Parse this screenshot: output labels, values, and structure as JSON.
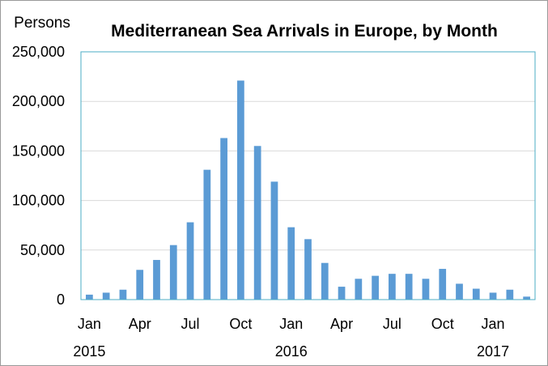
{
  "chart_data": {
    "type": "bar",
    "title": "Mediterranean Sea Arrivals in Europe, by Month",
    "ylabel": "Persons",
    "xlabel": "",
    "ylim": [
      0,
      250000
    ],
    "y_ticks": [
      "0",
      "50,000",
      "100,000",
      "150,000",
      "200,000",
      "250,000"
    ],
    "y_tick_values": [
      0,
      50000,
      100000,
      150000,
      200000,
      250000
    ],
    "grid": true,
    "categories": [
      "Jan 2015",
      "Feb 2015",
      "Mar 2015",
      "Apr 2015",
      "May 2015",
      "Jun 2015",
      "Jul 2015",
      "Aug 2015",
      "Sep 2015",
      "Oct 2015",
      "Nov 2015",
      "Dec 2015",
      "Jan 2016",
      "Feb 2016",
      "Mar 2016",
      "Apr 2016",
      "May 2016",
      "Jun 2016",
      "Jul 2016",
      "Aug 2016",
      "Sep 2016",
      "Oct 2016",
      "Nov 2016",
      "Dec 2016",
      "Jan 2017",
      "Feb 2017",
      "Mar 2017"
    ],
    "values": [
      5000,
      7000,
      10000,
      30000,
      40000,
      55000,
      78000,
      131000,
      163000,
      221000,
      155000,
      119000,
      73000,
      61000,
      37000,
      13000,
      21000,
      24000,
      26000,
      26000,
      21000,
      31000,
      16000,
      11000,
      7000,
      10000,
      3000
    ],
    "month_tick_labels": [
      {
        "index": 0,
        "label": "Jan"
      },
      {
        "index": 3,
        "label": "Apr"
      },
      {
        "index": 6,
        "label": "Jul"
      },
      {
        "index": 9,
        "label": "Oct"
      },
      {
        "index": 12,
        "label": "Jan"
      },
      {
        "index": 15,
        "label": "Apr"
      },
      {
        "index": 18,
        "label": "Jul"
      },
      {
        "index": 21,
        "label": "Oct"
      },
      {
        "index": 24,
        "label": "Jan"
      }
    ],
    "year_tick_labels": [
      {
        "index": 0,
        "label": "2015"
      },
      {
        "index": 12,
        "label": "2016"
      },
      {
        "index": 24,
        "label": "2017"
      }
    ],
    "bar_color": "#5b9bd5",
    "grid_color": "#d9d9d9",
    "plot_border_color": "#4bacc6"
  }
}
